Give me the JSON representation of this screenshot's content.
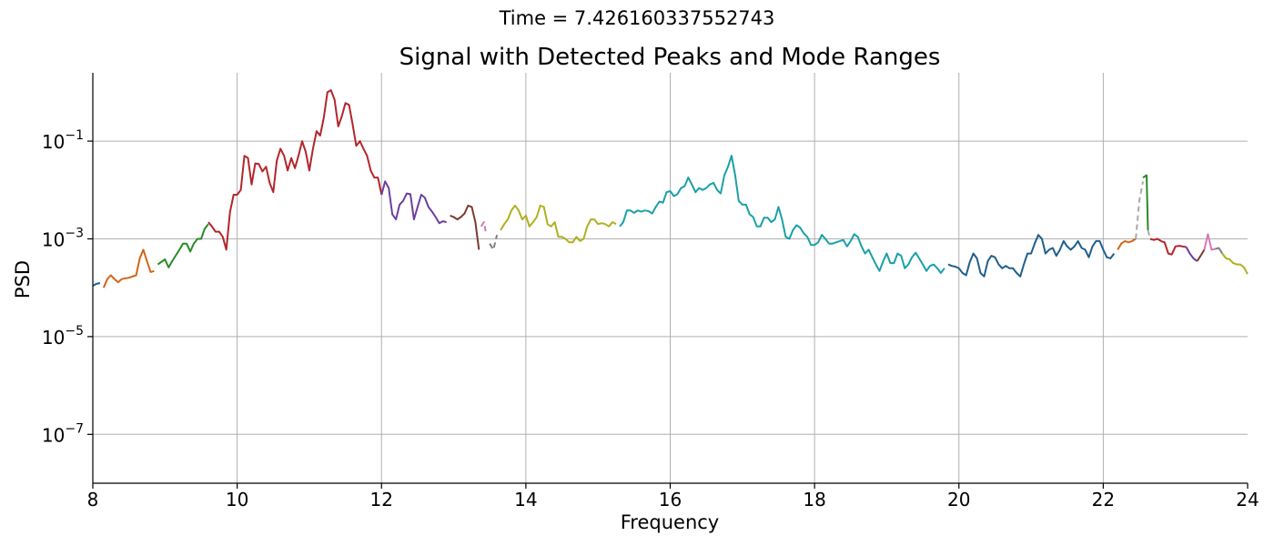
{
  "suptitle": "Time = 7.426160337552743",
  "chart_data": {
    "type": "line",
    "title": "Signal with Detected Peaks and Mode Ranges",
    "xlabel": "Frequency",
    "ylabel": "PSD",
    "xlim": [
      8,
      24
    ],
    "ylim": [
      1e-08,
      2.5
    ],
    "yscale": "log",
    "grid": true,
    "xticks": [
      8,
      10,
      12,
      14,
      16,
      18,
      20,
      22,
      24
    ],
    "xtick_labels": [
      "8",
      "10",
      "12",
      "14",
      "16",
      "18",
      "20",
      "22",
      "24"
    ],
    "yticks": [
      1e-07,
      1e-05,
      0.001,
      0.1
    ],
    "ytick_labels": [
      {
        "base": "10",
        "exp": "−7"
      },
      {
        "base": "10",
        "exp": "−5"
      },
      {
        "base": "10",
        "exp": "−3"
      },
      {
        "base": "10",
        "exp": "−1"
      }
    ],
    "series": [
      {
        "color": "#1f5f8b",
        "x": [
          8.0,
          8.05,
          8.1
        ],
        "y": [
          0.00011,
          0.00012,
          0.000125
        ]
      },
      {
        "color": "#d4641a",
        "x": [
          8.15,
          8.2,
          8.25,
          8.3,
          8.35,
          8.4,
          8.5,
          8.6,
          8.65,
          8.7,
          8.75,
          8.8,
          8.85
        ],
        "y": [
          0.0001,
          0.00015,
          0.00018,
          0.00015,
          0.00013,
          0.00015,
          0.00016,
          0.00018,
          0.0004,
          0.0006,
          0.00035,
          0.00021,
          0.00022
        ]
      },
      {
        "color": "#2a8a2a",
        "x": [
          8.9,
          9.0,
          9.05,
          9.1,
          9.2,
          9.25,
          9.3,
          9.35,
          9.4,
          9.45,
          9.5,
          9.55,
          9.6
        ],
        "y": [
          0.0003,
          0.00038,
          0.00026,
          0.00035,
          0.0006,
          0.0008,
          0.0008,
          0.00055,
          0.0008,
          0.001,
          0.001,
          0.0016,
          0.002
        ]
      },
      {
        "color": "#b3262b",
        "x": [
          9.6,
          9.65,
          9.7,
          9.75,
          9.8,
          9.85,
          9.9,
          9.95,
          10.0,
          10.05,
          10.1,
          10.15,
          10.2,
          10.25,
          10.3,
          10.35,
          10.4,
          10.45,
          10.5,
          10.55,
          10.6,
          10.65,
          10.7,
          10.75,
          10.8,
          10.85,
          10.9,
          10.95,
          11.0,
          11.05,
          11.1,
          11.15,
          11.2,
          11.25,
          11.3,
          11.35,
          11.4,
          11.45,
          11.5,
          11.55,
          11.6,
          11.65,
          11.7,
          11.75,
          11.8,
          11.85,
          11.9,
          11.95,
          12.0
        ],
        "y": [
          0.0022,
          0.0018,
          0.0014,
          0.0014,
          0.0011,
          0.0006,
          0.0035,
          0.008,
          0.008,
          0.01,
          0.05,
          0.045,
          0.013,
          0.035,
          0.034,
          0.024,
          0.03,
          0.014,
          0.009,
          0.04,
          0.07,
          0.05,
          0.025,
          0.045,
          0.028,
          0.05,
          0.1,
          0.06,
          0.025,
          0.07,
          0.16,
          0.13,
          0.3,
          1.0,
          1.1,
          0.7,
          0.2,
          0.32,
          0.6,
          0.55,
          0.22,
          0.08,
          0.1,
          0.07,
          0.05,
          0.025,
          0.018,
          0.018,
          0.008
        ]
      },
      {
        "color": "#6b3fa0",
        "x": [
          12.0,
          12.05,
          12.1,
          12.15,
          12.2,
          12.25,
          12.3,
          12.35,
          12.4,
          12.45,
          12.5,
          12.55,
          12.6,
          12.65,
          12.7,
          12.75,
          12.8,
          12.85,
          12.9
        ],
        "y": [
          0.008,
          0.015,
          0.011,
          0.0032,
          0.0025,
          0.005,
          0.006,
          0.0085,
          0.0082,
          0.0025,
          0.0045,
          0.008,
          0.007,
          0.0045,
          0.0036,
          0.0028,
          0.0021,
          0.0023,
          0.0022
        ]
      },
      {
        "color": "#7a3b2e",
        "x": [
          12.95,
          13.0,
          13.05,
          13.1,
          13.15,
          13.2,
          13.25,
          13.3,
          13.35
        ],
        "y": [
          0.003,
          0.0028,
          0.0025,
          0.0028,
          0.0033,
          0.0048,
          0.0045,
          0.0022,
          0.0006
        ]
      },
      {
        "color": "#d479b8",
        "x": [
          13.38,
          13.42,
          13.45
        ],
        "y": [
          0.0018,
          0.0022,
          0.0012
        ],
        "dashed": true
      },
      {
        "color": "#7f7f7f",
        "x": [
          13.5,
          13.55,
          13.6
        ],
        "y": [
          0.0008,
          0.0006,
          0.0012
        ],
        "dashed": true
      },
      {
        "color": "#b0b020",
        "x": [
          13.65,
          13.7,
          13.75,
          13.8,
          13.85,
          13.9,
          13.95,
          14.0,
          14.05,
          14.1,
          14.15,
          14.2,
          14.25,
          14.3,
          14.35,
          14.4,
          14.45,
          14.5,
          14.55,
          14.6,
          14.65,
          14.7,
          14.75,
          14.8,
          14.85,
          14.9,
          14.95,
          15.0,
          15.05,
          15.1,
          15.15,
          15.2,
          15.25
        ],
        "y": [
          0.0015,
          0.002,
          0.0025,
          0.0038,
          0.0048,
          0.0038,
          0.0025,
          0.003,
          0.0018,
          0.0022,
          0.0028,
          0.0048,
          0.0045,
          0.002,
          0.0018,
          0.0022,
          0.0011,
          0.0011,
          0.001,
          0.00085,
          0.00085,
          0.0011,
          0.0009,
          0.001,
          0.0018,
          0.0025,
          0.0025,
          0.002,
          0.0021,
          0.002,
          0.0018,
          0.0022,
          0.002
        ]
      },
      {
        "color": "#1aa0a8",
        "x": [
          15.3,
          15.35,
          15.4,
          15.45,
          15.5,
          15.55,
          15.6,
          15.65,
          15.7,
          15.75,
          15.8,
          15.85,
          15.9,
          15.95,
          16.0,
          16.05,
          16.1,
          16.15,
          16.2,
          16.25,
          16.3,
          16.35,
          16.4,
          16.45,
          16.5,
          16.55,
          16.6,
          16.65,
          16.7,
          16.75,
          16.8,
          16.85,
          16.9,
          16.95,
          17.0,
          17.05,
          17.1,
          17.15,
          17.2,
          17.25,
          17.3,
          17.35,
          17.4,
          17.45,
          17.5,
          17.55,
          17.6,
          17.65,
          17.7,
          17.75,
          17.8,
          17.85,
          17.9,
          17.95,
          18.0,
          18.05,
          18.1,
          18.15,
          18.2,
          18.25,
          18.3,
          18.35,
          18.4,
          18.45,
          18.5,
          18.55,
          18.6,
          18.65,
          18.7,
          18.75,
          18.8,
          18.85,
          18.9,
          18.95,
          19.0,
          19.05,
          19.1,
          19.15,
          19.2,
          19.25,
          19.3,
          19.35,
          19.4,
          19.45,
          19.5,
          19.55,
          19.6,
          19.65,
          19.7,
          19.75,
          19.8
        ],
        "y": [
          0.0018,
          0.0022,
          0.0038,
          0.0038,
          0.0034,
          0.0038,
          0.0036,
          0.0038,
          0.0037,
          0.0033,
          0.0045,
          0.0058,
          0.0055,
          0.009,
          0.0095,
          0.0075,
          0.0082,
          0.011,
          0.012,
          0.018,
          0.013,
          0.009,
          0.011,
          0.01,
          0.011,
          0.013,
          0.014,
          0.01,
          0.0085,
          0.02,
          0.03,
          0.05,
          0.02,
          0.006,
          0.005,
          0.005,
          0.0032,
          0.0028,
          0.0018,
          0.0018,
          0.0027,
          0.0027,
          0.0022,
          0.0025,
          0.0045,
          0.0025,
          0.0011,
          0.001,
          0.0015,
          0.0019,
          0.0017,
          0.0013,
          0.0011,
          0.00075,
          0.00075,
          0.00085,
          0.0012,
          0.001,
          0.0008,
          0.0008,
          0.00085,
          0.0009,
          0.00095,
          0.0007,
          0.0009,
          0.00125,
          0.0011,
          0.0007,
          0.0005,
          0.0006,
          0.00042,
          0.0003,
          0.00022,
          0.00035,
          0.0005,
          0.00032,
          0.00032,
          0.0005,
          0.00045,
          0.00025,
          0.0003,
          0.00042,
          0.00052,
          0.0004,
          0.0003,
          0.00022,
          0.00028,
          0.0003,
          0.00025,
          0.0002,
          0.00025
        ]
      },
      {
        "color": "#1f5f8b",
        "x": [
          19.85,
          19.9,
          19.95,
          20.0,
          20.05,
          20.1,
          20.15,
          20.2,
          20.25,
          20.3,
          20.35,
          20.4,
          20.45,
          20.5,
          20.55,
          20.6,
          20.65,
          20.7,
          20.75,
          20.8,
          20.85,
          20.9,
          20.95,
          21.0,
          21.05,
          21.1,
          21.15,
          21.2,
          21.25,
          21.3,
          21.35,
          21.4,
          21.45,
          21.5,
          21.55,
          21.6,
          21.65,
          21.7,
          21.75,
          21.8,
          21.85,
          21.9,
          21.95,
          22.0,
          22.05,
          22.1,
          22.15
        ],
        "y": [
          0.0003,
          0.00028,
          0.00027,
          0.00025,
          0.0002,
          0.00018,
          0.00033,
          0.0005,
          0.0004,
          0.0002,
          0.00017,
          0.00035,
          0.00045,
          0.00042,
          0.0003,
          0.00025,
          0.00028,
          0.00025,
          0.00025,
          0.0002,
          0.00017,
          0.0003,
          0.0005,
          0.0005,
          0.0008,
          0.0012,
          0.001,
          0.0005,
          0.0006,
          0.00065,
          0.00045,
          0.0006,
          0.0009,
          0.0007,
          0.0006,
          0.0007,
          0.0009,
          0.00065,
          0.0006,
          0.00042,
          0.0007,
          0.0009,
          0.0009,
          0.0006,
          0.00042,
          0.0004,
          0.0005
        ]
      },
      {
        "color": "#d4641a",
        "x": [
          22.2,
          22.25,
          22.3,
          22.35,
          22.4,
          22.45
        ],
        "y": [
          0.0006,
          0.0008,
          0.0009,
          0.00085,
          0.0009,
          0.001
        ]
      },
      {
        "color": "#aaaaaa",
        "x": [
          22.45,
          22.5,
          22.55
        ],
        "y": [
          0.001,
          0.006,
          0.015
        ],
        "dashed": true
      },
      {
        "color": "#2a8a2a",
        "x": [
          22.55,
          22.6,
          22.62
        ],
        "y": [
          0.018,
          0.02,
          0.0015
        ]
      },
      {
        "color": "#aaaaaa",
        "x": [
          22.62,
          22.65
        ],
        "y": [
          0.0015,
          0.001
        ],
        "dashed": true
      },
      {
        "color": "#b3262b",
        "x": [
          22.65,
          22.7,
          22.75,
          22.8,
          22.85,
          22.9,
          22.95,
          23.0,
          23.05,
          23.1,
          23.15
        ],
        "y": [
          0.001,
          0.00095,
          0.001,
          0.0009,
          0.00085,
          0.0005,
          0.00048,
          0.0007,
          0.00072,
          0.0007,
          0.00068
        ]
      },
      {
        "color": "#6b3fa0",
        "x": [
          23.15,
          23.2,
          23.25,
          23.3
        ],
        "y": [
          0.00068,
          0.0005,
          0.0004,
          0.00035
        ]
      },
      {
        "color": "#7a3b2e",
        "x": [
          23.3,
          23.35,
          23.4
        ],
        "y": [
          0.00035,
          0.00045,
          0.0006
        ]
      },
      {
        "color": "#d479b8",
        "x": [
          23.4,
          23.45,
          23.5,
          23.55
        ],
        "y": [
          0.0006,
          0.00125,
          0.0006,
          0.00062
        ]
      },
      {
        "color": "#7f7f7f",
        "x": [
          23.55,
          23.6,
          23.65
        ],
        "y": [
          0.00062,
          0.00065,
          0.0005
        ]
      },
      {
        "color": "#b0b020",
        "x": [
          23.65,
          23.7,
          23.75,
          23.8,
          23.85,
          23.9,
          23.95,
          24.0
        ],
        "y": [
          0.0005,
          0.0004,
          0.00038,
          0.00032,
          0.0003,
          0.0003,
          0.00026,
          0.00019
        ]
      }
    ]
  }
}
